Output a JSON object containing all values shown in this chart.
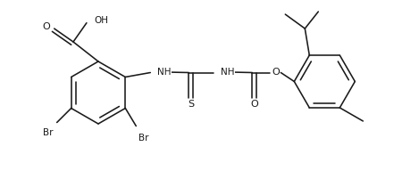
{
  "figsize": [
    4.69,
    1.92
  ],
  "dpi": 100,
  "bg": "#ffffff",
  "lc": "#1a1a1a",
  "lw": 1.15,
  "fs": 7.0,
  "xlim": [
    0,
    4.69
  ],
  "ylim": [
    0,
    1.92
  ]
}
